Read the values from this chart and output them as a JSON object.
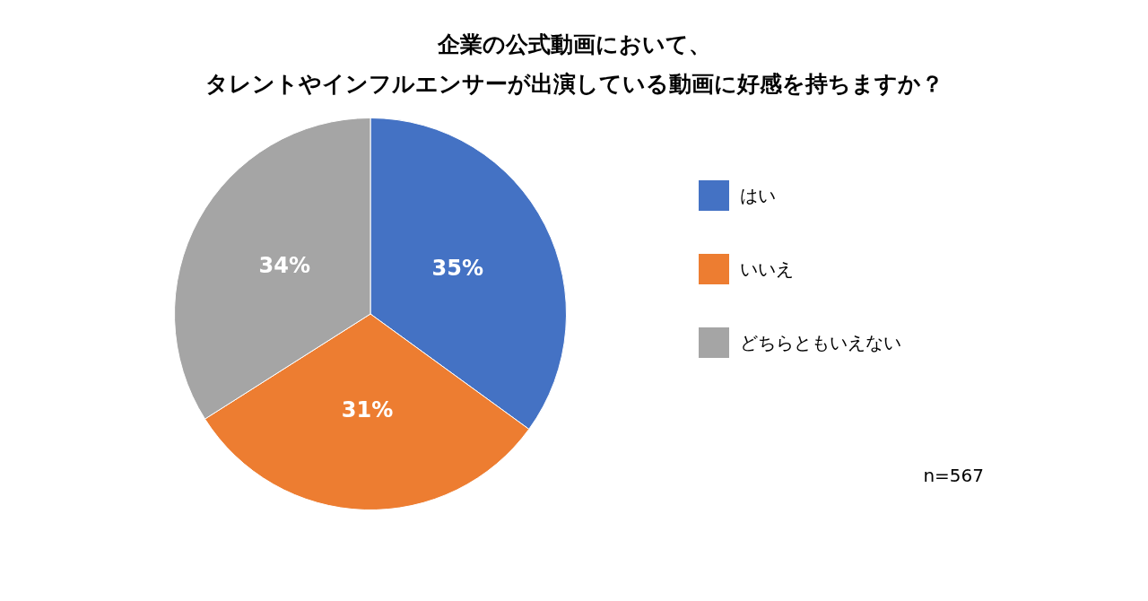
{
  "chart_data": {
    "type": "pie",
    "title": "企業の公式動画において、",
    "subtitle": "タレントやインフルエンサーが出演している動画に好感を持ちますか？",
    "categories": [
      "はい",
      "いいえ",
      "どちらともいえない"
    ],
    "values": [
      35,
      31,
      34
    ],
    "value_labels": [
      "35%",
      "31%",
      "34%"
    ],
    "colors": [
      "#4472c4",
      "#ed7d31",
      "#a5a5a5"
    ],
    "legend": "right",
    "annotations": [
      "n=567"
    ]
  }
}
